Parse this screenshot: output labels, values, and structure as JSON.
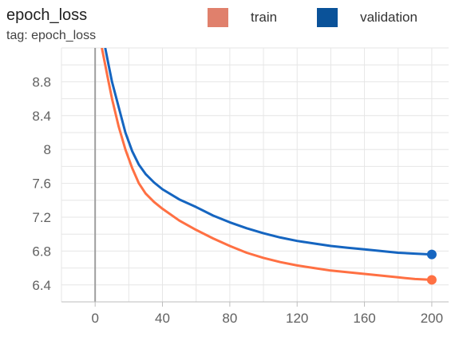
{
  "header": {
    "title": "epoch_loss",
    "subtitle": "tag: epoch_loss"
  },
  "legend": [
    {
      "label": "train",
      "color": "#e0806c"
    },
    {
      "label": "validation",
      "color": "#0a5299"
    }
  ],
  "chart_data": {
    "type": "line",
    "title": "epoch_loss",
    "xlim": [
      -20,
      210
    ],
    "ylim": [
      6.2,
      9.2
    ],
    "xticks": [
      0,
      40,
      80,
      120,
      160,
      200
    ],
    "yticks": [
      6.4,
      6.8,
      7.2,
      7.6,
      8,
      8.4,
      8.8
    ],
    "xtick_labels": [
      "0",
      "40",
      "80",
      "120",
      "160",
      "200"
    ],
    "ytick_labels": [
      "6.4",
      "6.8",
      "7.2",
      "7.6",
      "8",
      "8.4",
      "8.8"
    ],
    "grid": true,
    "series": [
      {
        "name": "train",
        "color": "#ff7043",
        "x": [
          4,
          6,
          8,
          10,
          14,
          18,
          22,
          26,
          30,
          35,
          40,
          50,
          60,
          70,
          80,
          90,
          100,
          110,
          120,
          130,
          140,
          150,
          160,
          170,
          180,
          190,
          200
        ],
        "y": [
          9.2,
          9.0,
          8.8,
          8.6,
          8.27,
          8.0,
          7.78,
          7.6,
          7.48,
          7.38,
          7.3,
          7.16,
          7.05,
          6.95,
          6.86,
          6.78,
          6.72,
          6.67,
          6.63,
          6.6,
          6.57,
          6.55,
          6.53,
          6.51,
          6.49,
          6.47,
          6.46
        ]
      },
      {
        "name": "validation",
        "color": "#1565c0",
        "x": [
          6,
          8,
          10,
          14,
          18,
          22,
          26,
          30,
          35,
          40,
          50,
          60,
          70,
          80,
          90,
          100,
          110,
          120,
          130,
          140,
          150,
          160,
          170,
          180,
          190,
          200
        ],
        "y": [
          9.2,
          9.0,
          8.8,
          8.5,
          8.2,
          7.98,
          7.82,
          7.71,
          7.61,
          7.53,
          7.41,
          7.32,
          7.22,
          7.14,
          7.07,
          7.01,
          6.96,
          6.92,
          6.89,
          6.86,
          6.84,
          6.82,
          6.8,
          6.78,
          6.77,
          6.76
        ]
      }
    ]
  }
}
